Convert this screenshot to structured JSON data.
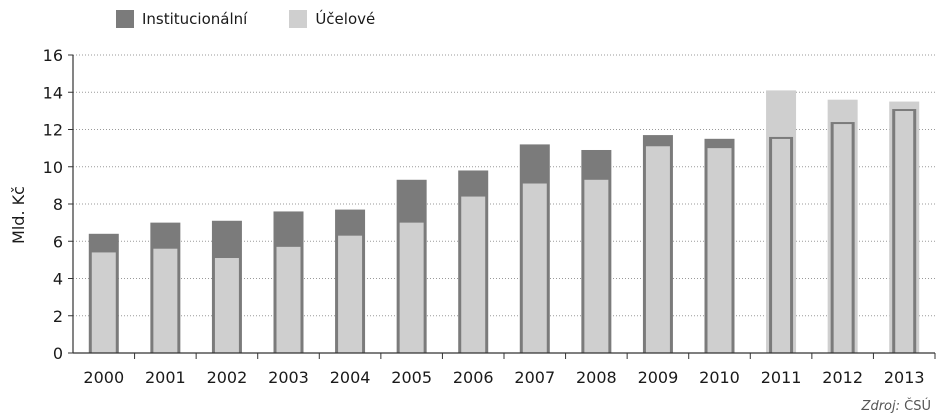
{
  "chart_data": {
    "type": "bar",
    "categories": [
      "2000",
      "2001",
      "2002",
      "2003",
      "2004",
      "2005",
      "2006",
      "2007",
      "2008",
      "2009",
      "2010",
      "2011",
      "2012",
      "2013"
    ],
    "series": [
      {
        "name": "Institucionální",
        "values": [
          6.4,
          7.0,
          7.1,
          7.6,
          7.7,
          9.3,
          9.8,
          11.2,
          10.9,
          11.7,
          11.5,
          11.6,
          12.4,
          13.1
        ]
      },
      {
        "name": "Účelové",
        "values": [
          5.4,
          5.6,
          5.1,
          5.7,
          6.3,
          7.0,
          8.4,
          9.1,
          9.3,
          11.1,
          11.0,
          14.1,
          13.6,
          13.5
        ]
      }
    ],
    "ylabel": "Mld. Kč",
    "xlabel": "",
    "ylim": [
      0,
      16
    ],
    "yticks": [
      0,
      2,
      4,
      6,
      8,
      10,
      12,
      14,
      16
    ],
    "grid": "horizontal dotted",
    "legend_position": "top-left",
    "colors": {
      "Institucionální": "#7b7b7b",
      "Účelové": "#cfcfcf"
    }
  },
  "source": {
    "prefix": "Zdroj:",
    "name": "ČSÚ"
  }
}
